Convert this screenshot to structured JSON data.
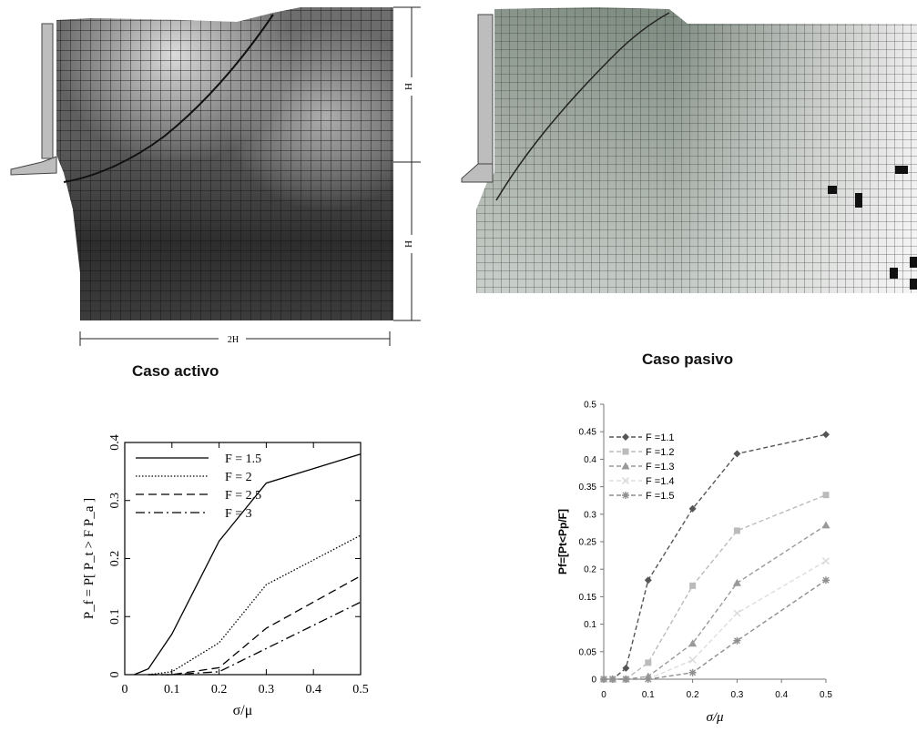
{
  "captions": {
    "active": "Caso activo",
    "passive": "Caso pasivo"
  },
  "mesh_active": {
    "dimension_top": "H",
    "dimension_bottom": "H",
    "dimension_width": "2H"
  },
  "chart_data": [
    {
      "type": "line",
      "title": "",
      "xlabel": "σ/μ",
      "ylabel": "P_f = P[ P_t > F P_a ]",
      "xlim": [
        0,
        0.5
      ],
      "ylim": [
        0,
        0.4
      ],
      "xticks": [
        "0",
        "0.1",
        "0.2",
        "0.3",
        "0.4",
        "0.5"
      ],
      "yticks": [
        "0",
        "0.1",
        "0.2",
        "0.3",
        "0.4"
      ],
      "legend_position": "top-left",
      "grid": false,
      "series": [
        {
          "name": "F = 1.5",
          "x": [
            0.02,
            0.05,
            0.1,
            0.2,
            0.3,
            0.5
          ],
          "y": [
            0,
            0.01,
            0.07,
            0.23,
            0.33,
            0.38
          ],
          "dash": "solid"
        },
        {
          "name": "F = 2",
          "x": [
            0.05,
            0.1,
            0.2,
            0.3,
            0.5
          ],
          "y": [
            0,
            0.005,
            0.055,
            0.155,
            0.24
          ],
          "dash": "dotted"
        },
        {
          "name": "F = 2.5",
          "x": [
            0.05,
            0.1,
            0.2,
            0.3,
            0.5
          ],
          "y": [
            0,
            0,
            0.012,
            0.08,
            0.17
          ],
          "dash": "dashed"
        },
        {
          "name": "F = 3",
          "x": [
            0.05,
            0.1,
            0.2,
            0.3,
            0.5
          ],
          "y": [
            0,
            0,
            0.005,
            0.045,
            0.125
          ],
          "dash": "dashdot"
        }
      ]
    },
    {
      "type": "line",
      "title": "",
      "xlabel": "σ/μ",
      "ylabel": "Pf=[Pt<Pp/F]",
      "xlim": [
        0,
        0.5
      ],
      "ylim": [
        0,
        0.5
      ],
      "xticks": [
        "0",
        "0.1",
        "0.2",
        "0.3",
        "0.4",
        "0.5"
      ],
      "yticks": [
        "0",
        "0.05",
        "0.1",
        "0.15",
        "0.2",
        "0.25",
        "0.3",
        "0.35",
        "0.4",
        "0.45",
        "0.5"
      ],
      "legend_position": "top-left",
      "grid": false,
      "series": [
        {
          "name": "F =1.1",
          "x": [
            0,
            0.02,
            0.05,
            0.1,
            0.2,
            0.3,
            0.5
          ],
          "y": [
            0,
            0,
            0.02,
            0.18,
            0.31,
            0.41,
            0.445
          ],
          "color": "#555555",
          "marker": "diamond"
        },
        {
          "name": "F =1.2",
          "x": [
            0,
            0.02,
            0.05,
            0.1,
            0.2,
            0.3,
            0.5
          ],
          "y": [
            0,
            0,
            0,
            0.03,
            0.17,
            0.27,
            0.335
          ],
          "color": "#bbbbbb",
          "marker": "square"
        },
        {
          "name": "F =1.3",
          "x": [
            0,
            0.02,
            0.05,
            0.1,
            0.2,
            0.3,
            0.5
          ],
          "y": [
            0,
            0,
            0,
            0.005,
            0.065,
            0.175,
            0.28
          ],
          "color": "#999999",
          "marker": "triangle"
        },
        {
          "name": "F =1.4",
          "x": [
            0,
            0.02,
            0.05,
            0.1,
            0.2,
            0.3,
            0.5
          ],
          "y": [
            0,
            0,
            0,
            0,
            0.035,
            0.12,
            0.215
          ],
          "color": "#dddddd",
          "marker": "x"
        },
        {
          "name": "F =1.5",
          "x": [
            0,
            0.02,
            0.05,
            0.1,
            0.2,
            0.3,
            0.5
          ],
          "y": [
            0,
            0,
            0,
            0,
            0.012,
            0.07,
            0.18
          ],
          "color": "#8f8f8f",
          "marker": "star"
        }
      ]
    }
  ]
}
